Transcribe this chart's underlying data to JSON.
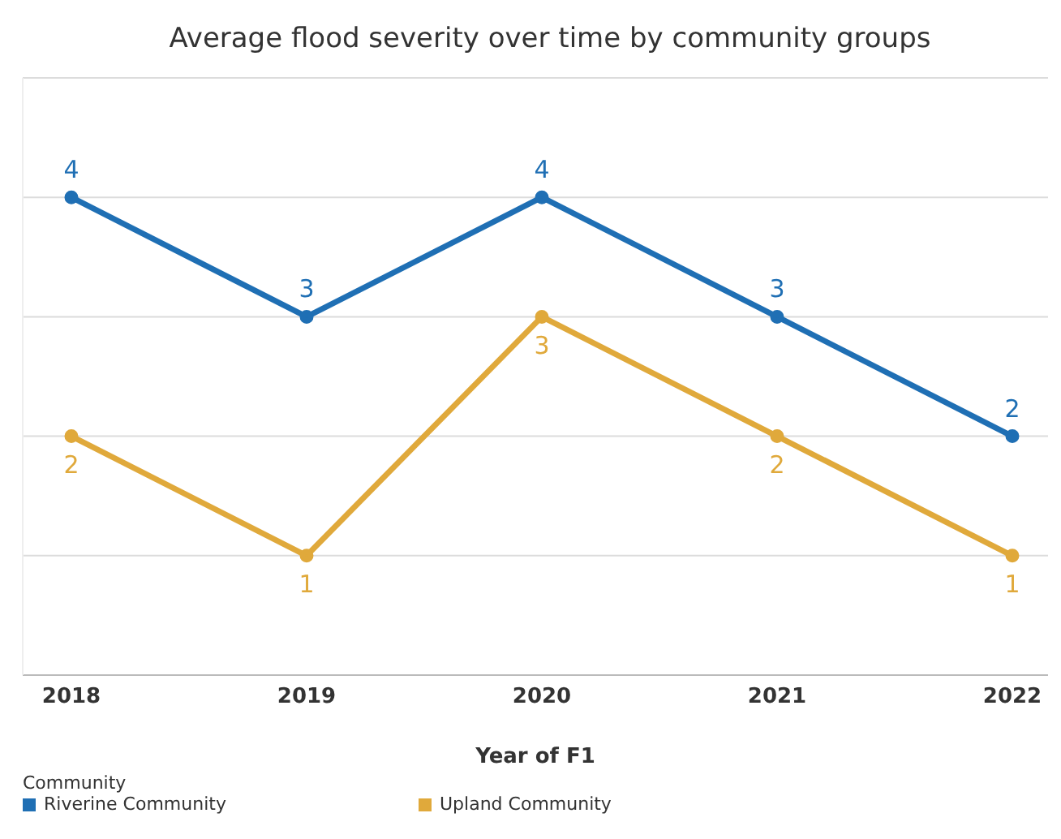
{
  "chart_data": {
    "type": "line",
    "title": "Average flood severity over time by community groups",
    "xlabel": "Year of F1",
    "legend_title": "Community",
    "categories": [
      "2018",
      "2019",
      "2020",
      "2021",
      "2022"
    ],
    "series": [
      {
        "name": "Riverine Community",
        "color": "#1f6fb4",
        "values": [
          4,
          3,
          4,
          3,
          2
        ]
      },
      {
        "name": "Upland Community",
        "color": "#e0a93b",
        "values": [
          2,
          1,
          3,
          2,
          1
        ]
      }
    ],
    "ylim": [
      0,
      5
    ],
    "yticks": [
      {
        "value": 1,
        "label": null
      },
      {
        "value": 2,
        "label": null
      },
      {
        "value": 3,
        "label": null
      },
      {
        "value": 4,
        "label": null
      }
    ],
    "tick_labels": "x",
    "grid": "y",
    "data_labels": true,
    "legend": "bottom",
    "marker": "circle",
    "line_style": "solid"
  }
}
